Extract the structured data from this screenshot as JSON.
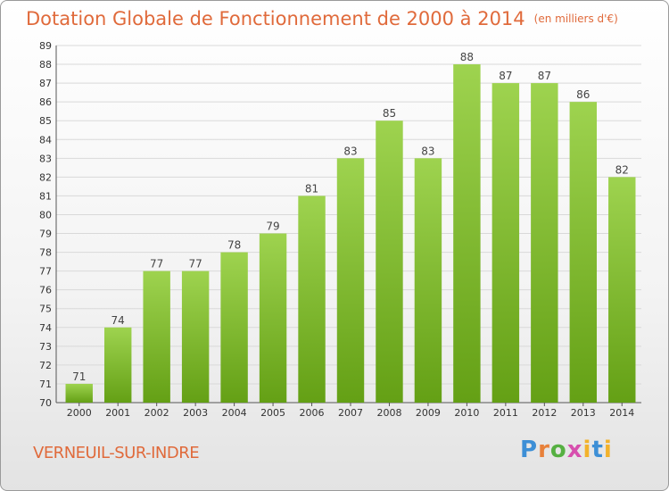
{
  "header": {
    "title": "Dotation Globale de Fonctionnement de 2000 à 2014",
    "unit": "(en milliers d'€)"
  },
  "footer": {
    "commune": "VERNEUIL-SUR-INDRE",
    "logo_text": "Proxiti"
  },
  "colors": {
    "bar_top": "#9ed34f",
    "bar_bottom": "#64a015",
    "title": "#e06a3b",
    "grid": "#d9d9d9",
    "axis": "#555555"
  },
  "chart_data": {
    "type": "bar",
    "categories": [
      "2000",
      "2001",
      "2002",
      "2003",
      "2004",
      "2005",
      "2006",
      "2007",
      "2008",
      "2009",
      "2010",
      "2011",
      "2012",
      "2013",
      "2014"
    ],
    "values": [
      71,
      74,
      77,
      77,
      78,
      79,
      81,
      83,
      85,
      83,
      88,
      87,
      87,
      86,
      82
    ],
    "title": "Dotation Globale de Fonctionnement de 2000 à 2014",
    "xlabel": "",
    "ylabel": "",
    "ylim": [
      70,
      89
    ],
    "yticks": [
      70,
      71,
      72,
      73,
      74,
      75,
      76,
      77,
      78,
      79,
      80,
      81,
      82,
      83,
      84,
      85,
      86,
      87,
      88,
      89
    ],
    "grid": true,
    "data_labels": true
  }
}
